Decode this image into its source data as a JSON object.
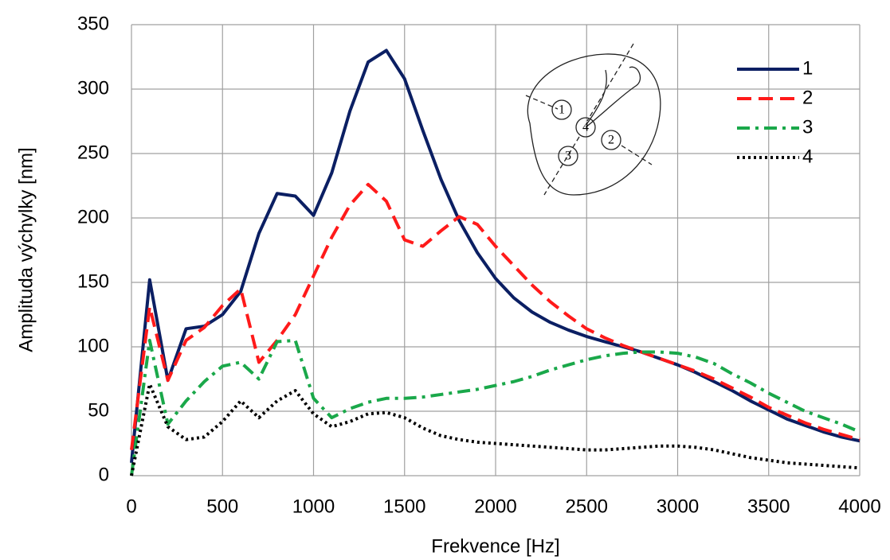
{
  "chart_data": {
    "type": "line",
    "x_label": "Frekvence [Hz]",
    "y_label": "Amplituda výchylky [nm]",
    "x": [
      0,
      100,
      200,
      300,
      400,
      500,
      600,
      700,
      800,
      900,
      1000,
      1100,
      1200,
      1300,
      1400,
      1500,
      1600,
      1700,
      1800,
      1900,
      2000,
      2100,
      2200,
      2300,
      2400,
      2500,
      2600,
      2700,
      2800,
      2900,
      3000,
      3100,
      3200,
      3300,
      3400,
      3500,
      3600,
      3700,
      3800,
      3900,
      4000
    ],
    "series": [
      {
        "name": "1",
        "color": "#0b1f63",
        "dash": "solid",
        "values": [
          10,
          152,
          74,
          114,
          116,
          125,
          143,
          188,
          219,
          217,
          202,
          235,
          283,
          321,
          330,
          308,
          268,
          230,
          198,
          173,
          153,
          138,
          127,
          119,
          113,
          108,
          104,
          100,
          96,
          91,
          86,
          80,
          73,
          66,
          58,
          51,
          44,
          39,
          34,
          30,
          27
        ]
      },
      {
        "name": "2",
        "color": "#ff1a1a",
        "dash": "dashed",
        "values": [
          20,
          131,
          74,
          105,
          115,
          132,
          145,
          88,
          105,
          125,
          155,
          185,
          210,
          226,
          213,
          183,
          178,
          190,
          201,
          195,
          178,
          163,
          148,
          135,
          124,
          114,
          107,
          101,
          96,
          91,
          86,
          81,
          75,
          68,
          61,
          53,
          47,
          41,
          36,
          32,
          28
        ]
      },
      {
        "name": "3",
        "color": "#1aa84a",
        "dash": "dashdot",
        "values": [
          0,
          105,
          40,
          58,
          73,
          85,
          88,
          75,
          104,
          105,
          60,
          45,
          52,
          57,
          60,
          60,
          61,
          63,
          65,
          67,
          70,
          73,
          77,
          82,
          86,
          90,
          93,
          95,
          96,
          96,
          95,
          92,
          87,
          79,
          72,
          64,
          57,
          50,
          45,
          40,
          34
        ]
      },
      {
        "name": "4",
        "color": "#000000",
        "dash": "dotted",
        "values": [
          0,
          71,
          38,
          28,
          30,
          42,
          58,
          45,
          58,
          66,
          48,
          38,
          42,
          48,
          49,
          45,
          37,
          31,
          28,
          26,
          25,
          24,
          23,
          22,
          21,
          20,
          20,
          21,
          22,
          23,
          23,
          22,
          20,
          17,
          14,
          12,
          10,
          9,
          8,
          7,
          6
        ]
      }
    ],
    "xlim": [
      0,
      4000
    ],
    "xticks": [
      0,
      500,
      1000,
      1500,
      2000,
      2500,
      3000,
      3500,
      4000
    ],
    "ylim": [
      0,
      350
    ],
    "yticks": [
      0,
      50,
      100,
      150,
      200,
      250,
      300,
      350
    ],
    "grid": true,
    "legend": "upper right",
    "inset_labels": [
      "1",
      "4",
      "2",
      "3"
    ]
  }
}
